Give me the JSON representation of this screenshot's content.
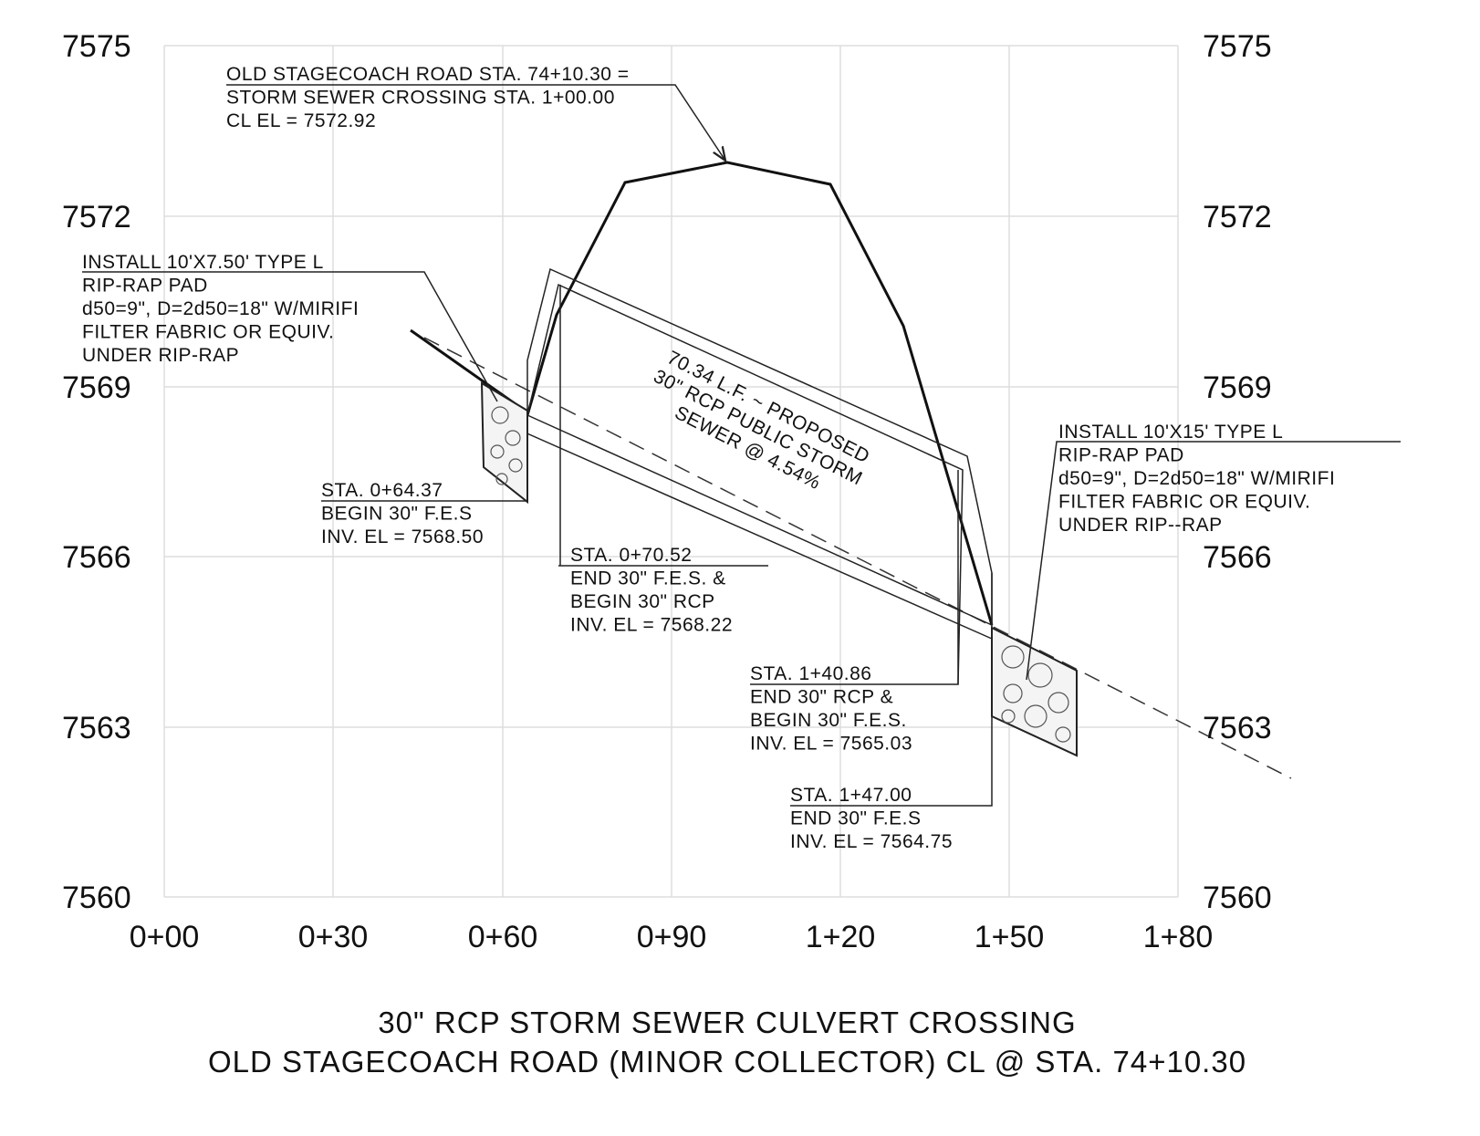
{
  "axis": {
    "left_labels": [
      "7575",
      "7572",
      "7569",
      "7566",
      "7563",
      "7560"
    ],
    "right_labels": [
      "7575",
      "7572",
      "7569",
      "7566",
      "7563",
      "7560"
    ],
    "x_labels": [
      "0+00",
      "0+30",
      "0+60",
      "0+90",
      "1+20",
      "1+50",
      "1+80"
    ]
  },
  "annotations": [
    {
      "lines": [
        "OLD STAGECOACH ROAD STA. 74+10.30 =",
        "STORM SEWER CROSSING STA. 1+00.00",
        "CL EL = 7572.92"
      ]
    },
    {
      "lines": [
        "INSTALL 10'X7.50' TYPE L",
        "RIP-RAP PAD",
        "d50=9\", D=2d50=18\" W/MIRIFI",
        "FILTER FABRIC OR EQUIV.",
        "UNDER RIP-RAP"
      ]
    },
    {
      "lines": [
        "STA. 0+64.37",
        "BEGIN 30\" F.E.S",
        "INV. EL = 7568.50"
      ]
    },
    {
      "lines": [
        "STA. 0+70.52",
        "END 30\" F.E.S. &",
        "BEGIN 30\" RCP",
        "INV. EL = 7568.22"
      ]
    },
    {
      "lines": [
        "STA. 1+40.86",
        "END 30\" RCP &",
        "BEGIN 30\" F.E.S.",
        "INV. EL = 7565.03"
      ]
    },
    {
      "lines": [
        "STA. 1+47.00",
        "END 30\" F.E.S",
        "INV. EL = 7564.75"
      ]
    },
    {
      "lines": [
        "INSTALL 10'X15' TYPE L",
        "RIP-RAP PAD",
        "d50=9\", D=2d50=18\" W/MIRIFI",
        "FILTER FABRIC OR EQUIV.",
        "UNDER RIP--RAP"
      ]
    },
    {
      "lines": [
        "70.34 L.F. ~ PROPOSED",
        "30\" RCP PUBLIC STORM",
        "SEWER @ 4.54%"
      ]
    }
  ],
  "title": [
    "30\" RCP STORM SEWER CULVERT CROSSING",
    "OLD STAGECOACH ROAD (MINOR COLLECTOR) CL @ STA. 74+10.30"
  ]
}
